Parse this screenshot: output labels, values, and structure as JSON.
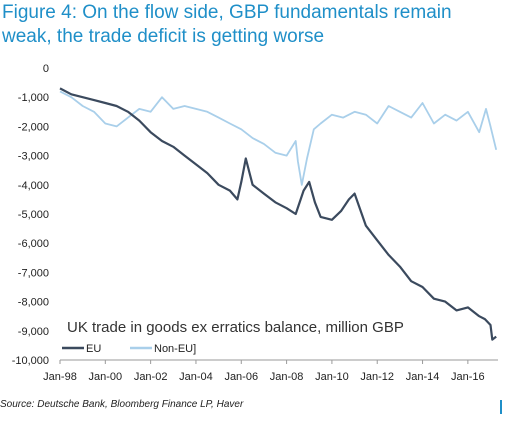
{
  "title": {
    "line1": "Figure 4: On the flow side, GBP fundamentals remain",
    "line2": "weak, the trade deficit is getting worse"
  },
  "source": "Source: Deutsche Bank, Bloomberg Finance LP, Haver",
  "chart_data": {
    "type": "line",
    "title": "Figure 4: On the flow side, GBP fundamentals remain weak, the trade deficit is getting worse",
    "annotation": "UK trade in goods ex erratics balance, million GBP",
    "xlabel": "",
    "ylabel": "",
    "ylim": [
      -10000,
      0
    ],
    "yticks": [
      0,
      -1000,
      -2000,
      -3000,
      -4000,
      -5000,
      -6000,
      -7000,
      -8000,
      -9000,
      -10000
    ],
    "ytick_labels": [
      "0",
      "-1,000",
      "-2,000",
      "-3,000",
      "-4,000",
      "-5,000",
      "-6,000",
      "-7,000",
      "-8,000",
      "-9,000",
      "-10,000"
    ],
    "xlim": [
      1998.0,
      2017.33
    ],
    "xticks": [
      1998,
      2000,
      2002,
      2004,
      2006,
      2008,
      2010,
      2012,
      2014,
      2016
    ],
    "xtick_labels": [
      "Jan-98",
      "Jan-00",
      "Jan-02",
      "Jan-04",
      "Jan-06",
      "Jan-08",
      "Jan-10",
      "Jan-12",
      "Jan-14",
      "Jan-16"
    ],
    "grid": false,
    "legend_position": "bottom-left",
    "series": [
      {
        "name": "EU",
        "color": "#3b4a5e",
        "x": [
          1998.0,
          1998.5,
          1999.0,
          1999.5,
          2000.0,
          2000.5,
          2001.0,
          2001.5,
          2002.0,
          2002.5,
          2003.0,
          2003.5,
          2004.0,
          2004.5,
          2005.0,
          2005.5,
          2005.83,
          2006.0,
          2006.2,
          2006.5,
          2007.0,
          2007.5,
          2008.0,
          2008.4,
          2008.75,
          2009.0,
          2009.25,
          2009.5,
          2010.0,
          2010.4,
          2010.75,
          2011.0,
          2011.5,
          2012.0,
          2012.5,
          2013.0,
          2013.5,
          2014.0,
          2014.5,
          2015.0,
          2015.5,
          2016.0,
          2016.5,
          2016.75,
          2017.0,
          2017.08,
          2017.25
        ],
        "values": [
          -700,
          -900,
          -1000,
          -1100,
          -1200,
          -1300,
          -1500,
          -1800,
          -2200,
          -2500,
          -2700,
          -3000,
          -3300,
          -3600,
          -4000,
          -4200,
          -4500,
          -3900,
          -3100,
          -4000,
          -4300,
          -4600,
          -4800,
          -5000,
          -4200,
          -3900,
          -4600,
          -5100,
          -5200,
          -4900,
          -4500,
          -4300,
          -5400,
          -5900,
          -6400,
          -6800,
          -7300,
          -7500,
          -7900,
          -8000,
          -8300,
          -8200,
          -8500,
          -8600,
          -8800,
          -9300,
          -9200
        ]
      },
      {
        "name": "Non-EU]",
        "color": "#a9cfea",
        "x": [
          1998.0,
          1998.5,
          1999.0,
          1999.5,
          2000.0,
          2000.5,
          2001.0,
          2001.5,
          2002.0,
          2002.5,
          2003.0,
          2003.5,
          2004.0,
          2004.5,
          2005.0,
          2005.5,
          2006.0,
          2006.5,
          2007.0,
          2007.5,
          2008.0,
          2008.4,
          2008.5,
          2008.67,
          2008.9,
          2009.2,
          2009.5,
          2010.0,
          2010.5,
          2011.0,
          2011.5,
          2012.0,
          2012.5,
          2013.0,
          2013.5,
          2014.0,
          2014.5,
          2015.0,
          2015.5,
          2016.0,
          2016.5,
          2016.8,
          2017.0,
          2017.25
        ],
        "values": [
          -800,
          -1000,
          -1300,
          -1500,
          -1900,
          -2000,
          -1700,
          -1400,
          -1500,
          -1000,
          -1400,
          -1300,
          -1400,
          -1500,
          -1700,
          -1900,
          -2100,
          -2400,
          -2600,
          -2900,
          -3000,
          -2500,
          -3200,
          -4000,
          -3100,
          -2100,
          -1900,
          -1600,
          -1700,
          -1500,
          -1600,
          -1900,
          -1300,
          -1500,
          -1700,
          -1200,
          -1900,
          -1600,
          -1800,
          -1500,
          -2200,
          -1400,
          -2000,
          -2800
        ]
      }
    ]
  }
}
